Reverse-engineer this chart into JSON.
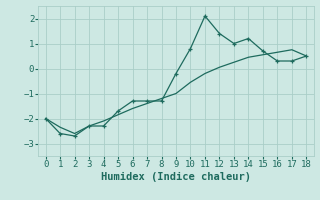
{
  "xlabel": "Humidex (Indice chaleur)",
  "line1_x": [
    0,
    1,
    2,
    3,
    4,
    5,
    6,
    7,
    8,
    9,
    10,
    11,
    12,
    13,
    14,
    15,
    16,
    17,
    18
  ],
  "line1_y": [
    -2.0,
    -2.6,
    -2.7,
    -2.3,
    -2.3,
    -1.7,
    -1.3,
    -1.3,
    -1.3,
    -0.2,
    0.8,
    2.1,
    1.4,
    1.0,
    1.2,
    0.7,
    0.3,
    0.3,
    0.5
  ],
  "line2_x": [
    0,
    1,
    2,
    3,
    4,
    5,
    6,
    7,
    8,
    9,
    10,
    11,
    12,
    13,
    14,
    15,
    16,
    17,
    18
  ],
  "line2_y": [
    -2.0,
    -2.35,
    -2.6,
    -2.3,
    -2.1,
    -1.85,
    -1.6,
    -1.4,
    -1.2,
    -1.0,
    -0.55,
    -0.2,
    0.05,
    0.25,
    0.45,
    0.55,
    0.65,
    0.75,
    0.5
  ],
  "line_color": "#1e6b5e",
  "bg_color": "#cde8e3",
  "grid_color": "#aacec8",
  "ylim": [
    -3.5,
    2.5
  ],
  "yticks": [
    -3,
    -2,
    -1,
    0,
    1,
    2
  ],
  "xlim": [
    -0.5,
    18.5
  ],
  "xticks": [
    0,
    1,
    2,
    3,
    4,
    5,
    6,
    7,
    8,
    9,
    10,
    11,
    12,
    13,
    14,
    15,
    16,
    17,
    18
  ],
  "tick_fontsize": 6.5,
  "xlabel_fontsize": 7.5
}
